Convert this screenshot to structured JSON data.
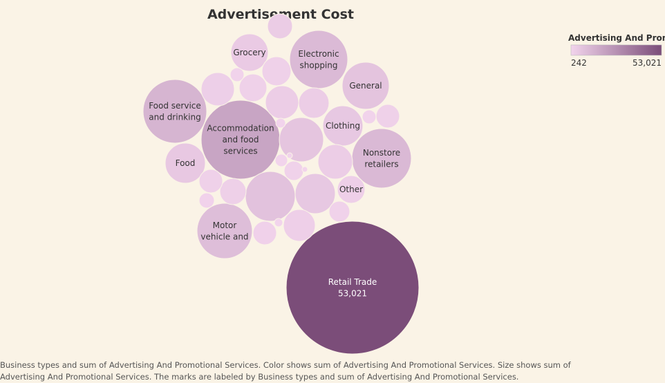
{
  "chart_data": {
    "type": "packed-bubble",
    "title": "Advertisement Cost",
    "measure": "Advertising And Promotional Services",
    "legend": {
      "title": "Advertising And Promo..",
      "min_label": "242",
      "max_label": "53,021",
      "min": 242,
      "max": 53021,
      "color_min": "#f2d4ec",
      "color_max": "#7b4d79",
      "placement": "top-right"
    },
    "bubbles": [
      {
        "label": [
          "Retail Trade",
          "53,021"
        ],
        "value": 53021
      },
      {
        "label": [
          "Accommodation",
          "and food",
          "services"
        ],
        "value": 18800
      },
      {
        "label": [
          "Food service",
          "and drinking"
        ],
        "value": 12500
      },
      {
        "label": [
          "Electronic",
          "shopping"
        ],
        "value": 10400
      },
      {
        "label": [
          "Nonstore",
          "retailers"
        ],
        "value": 10700
      },
      {
        "label": [
          "Motor",
          "vehicle and"
        ],
        "value": 8900
      },
      {
        "label": [
          "General"
        ],
        "value": 6500
      },
      {
        "label": [
          "Clothing"
        ],
        "value": 4900
      },
      {
        "label": [
          "Food"
        ],
        "value": 4800
      },
      {
        "label": [
          "Grocery"
        ],
        "value": 4000
      },
      {
        "label": [
          "Other"
        ],
        "value": 2200
      },
      {
        "label": [],
        "value": 7300
      },
      {
        "label": [],
        "value": 6000
      },
      {
        "label": [],
        "value": 4900
      },
      {
        "label": [],
        "value": 3300
      },
      {
        "label": [],
        "value": 3000
      },
      {
        "label": [],
        "value": 2900
      },
      {
        "label": [],
        "value": 2900
      },
      {
        "label": [],
        "value": 2300
      },
      {
        "label": [],
        "value": 2100
      },
      {
        "label": [],
        "value": 1900
      },
      {
        "label": [],
        "value": 1600
      },
      {
        "label": [],
        "value": 1500
      },
      {
        "label": [],
        "value": 1600
      },
      {
        "label": [],
        "value": 1400
      },
      {
        "label": [],
        "value": 1300
      },
      {
        "label": [],
        "value": 1100
      },
      {
        "label": [],
        "value": 1000
      },
      {
        "label": [],
        "value": 900
      },
      {
        "label": [],
        "value": 800
      },
      {
        "label": [],
        "value": 500
      },
      {
        "label": [],
        "value": 400
      },
      {
        "label": [],
        "value": 400
      },
      {
        "label": [],
        "value": 242
      },
      {
        "label": [],
        "value": 242
      },
      {
        "label": [],
        "value": 242
      }
    ]
  },
  "caption": "Business types and sum of Advertising And Promotional Services.  Color shows sum of Advertising And Promotional Services.  Size shows sum of Advertising And Promotional Services.  The marks are labeled by Business types and sum of Advertising And Promotional Services."
}
